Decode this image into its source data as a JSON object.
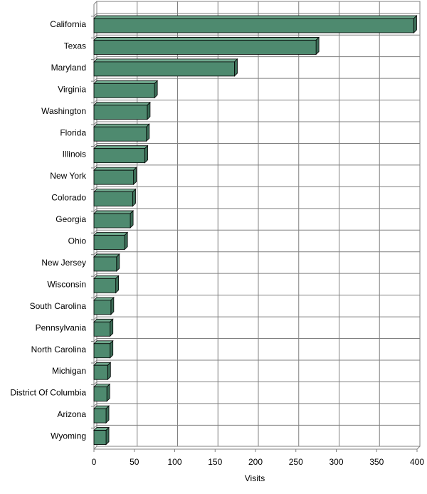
{
  "chart_data": {
    "type": "bar",
    "orientation": "horizontal",
    "categories": [
      "California",
      "Texas",
      "Maryland",
      "Virginia",
      "Washington",
      "Florida",
      "Illinois",
      "New York",
      "Colorado",
      "Georgia",
      "Ohio",
      "New Jersey",
      "Wisconsin",
      "South Carolina",
      "Pennsylvania",
      "North Carolina",
      "Michigan",
      "District Of Columbia",
      "Arizona",
      "Wyoming"
    ],
    "values": [
      396,
      275,
      174,
      75,
      66,
      65,
      63,
      49,
      48,
      45,
      38,
      28,
      27,
      21,
      20,
      20,
      17,
      16,
      15,
      15
    ],
    "xlabel": "Visits",
    "ylabel": "",
    "xlim": [
      0,
      400
    ],
    "xticks": [
      "0",
      "50",
      "100",
      "150",
      "200",
      "250",
      "300",
      "350",
      "400"
    ],
    "grid": true,
    "style": "3d",
    "bar_color": "#4e8a6f"
  }
}
